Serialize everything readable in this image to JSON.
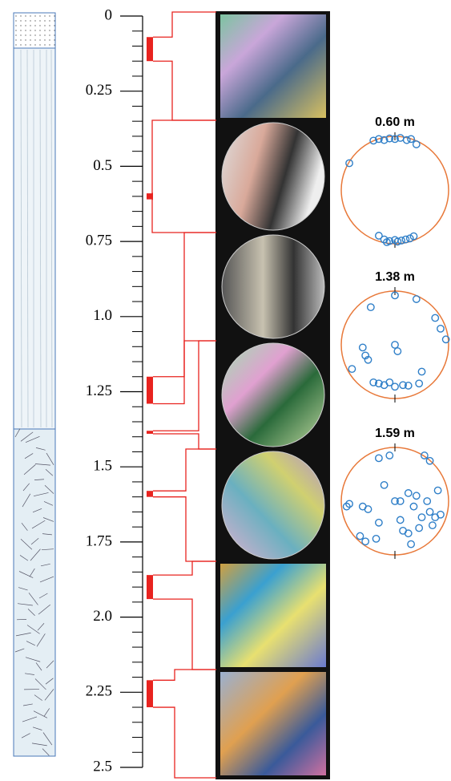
{
  "chart_data": {
    "type": "depth-log",
    "ylim": [
      0,
      2.5
    ],
    "yticks": [
      0,
      0.25,
      0.5,
      0.75,
      {
        "value": 1,
        "label": "1.0"
      },
      1.25,
      1.5,
      1.75,
      {
        "value": 2,
        "label": "2.0"
      },
      2.25,
      2.5
    ],
    "yminor_ticks": [
      0.05,
      0.1,
      0.15,
      0.2,
      0.3,
      0.35,
      0.4,
      0.45,
      0.55,
      0.6,
      0.65,
      0.7,
      0.8,
      0.85,
      0.9,
      0.95,
      1.05,
      1.1,
      1.15,
      1.2,
      1.3,
      1.35,
      1.4,
      1.45,
      1.55,
      1.6,
      1.65,
      1.7,
      1.8,
      1.85,
      1.9,
      1.95,
      2.05,
      2.1,
      2.15,
      2.2,
      2.3,
      2.35,
      2.4,
      2.45
    ],
    "samples": {
      "color": "#e8231f",
      "start": [
        0.07,
        0.59,
        1.2,
        1.38,
        1.58,
        1.86,
        2.21
      ],
      "end": [
        0.15,
        0.61,
        1.29,
        1.39,
        1.6,
        1.94,
        2.3
      ]
    },
    "stereonets": [
      {
        "title": "0.60 m",
        "circle_color": "#e8793a",
        "point_color": "#2f7fc8",
        "points_x": [
          -0.4,
          -0.3,
          -0.2,
          -0.1,
          0.0,
          0.1,
          0.22,
          0.3,
          0.4,
          -0.85,
          -0.3,
          -0.2,
          -0.1,
          0.0,
          0.05,
          0.12,
          0.2,
          0.28,
          0.35,
          -0.15
        ],
        "points_y": [
          -0.92,
          -0.95,
          -0.93,
          -0.96,
          -0.95,
          -0.97,
          -0.93,
          -0.95,
          -0.85,
          -0.5,
          0.85,
          0.92,
          0.95,
          0.93,
          0.96,
          0.94,
          0.92,
          0.9,
          0.86,
          0.97
        ]
      },
      {
        "title": "1.38 m",
        "circle_color": "#e8793a",
        "point_color": "#2f7fc8",
        "points_x": [
          -0.45,
          0.0,
          0.4,
          0.75,
          0.85,
          0.95,
          -0.6,
          -0.55,
          -0.5,
          0.0,
          0.05,
          -0.8,
          -0.4,
          -0.3,
          -0.2,
          -0.1,
          0.0,
          0.15,
          0.25,
          0.5,
          0.45
        ],
        "points_y": [
          -0.7,
          -0.92,
          -0.85,
          -0.5,
          -0.3,
          -0.1,
          0.05,
          0.2,
          0.28,
          0.0,
          0.12,
          0.45,
          0.7,
          0.72,
          0.75,
          0.7,
          0.78,
          0.75,
          0.76,
          0.5,
          0.72
        ]
      },
      {
        "title": "1.59 m",
        "circle_color": "#e8793a",
        "point_color": "#2f7fc8",
        "points_x": [
          -0.3,
          -0.1,
          0.55,
          0.65,
          -0.85,
          -0.6,
          -0.5,
          -0.2,
          0.0,
          0.25,
          0.4,
          0.35,
          0.6,
          0.8,
          -0.3,
          0.1,
          0.25,
          0.65,
          0.75,
          0.85,
          -0.65,
          -0.55,
          -0.35,
          0.15,
          0.3,
          0.45,
          0.7,
          -0.9,
          0.1,
          0.5
        ],
        "points_y": [
          -0.8,
          -0.85,
          -0.85,
          -0.75,
          0.05,
          0.1,
          0.15,
          -0.3,
          0.0,
          -0.15,
          -0.1,
          0.1,
          0.0,
          -0.2,
          0.4,
          0.35,
          0.6,
          0.2,
          0.3,
          0.25,
          0.65,
          0.75,
          0.7,
          0.55,
          0.8,
          0.5,
          0.45,
          0.1,
          0.0,
          0.3
        ]
      }
    ]
  }
}
